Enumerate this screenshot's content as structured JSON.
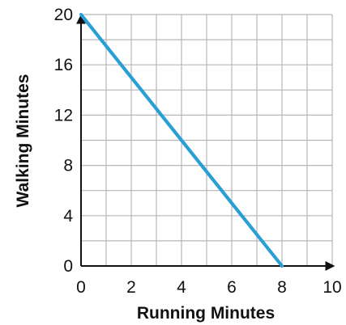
{
  "chart_data": {
    "type": "line",
    "xlabel": "Running Minutes",
    "ylabel": "Walking Minutes",
    "xlim": [
      0,
      10
    ],
    "ylim": [
      0,
      20
    ],
    "grid": true,
    "x_ticks": [
      "0",
      "2",
      "4",
      "6",
      "8",
      "10"
    ],
    "y_ticks": [
      "0",
      "4",
      "8",
      "12",
      "16",
      "20"
    ],
    "series": [
      {
        "x": [
          0,
          8
        ],
        "y": [
          20,
          0
        ]
      }
    ],
    "colors": {
      "line": "#2a9fd6",
      "grid": "#b7b7b7",
      "axis": "#111111"
    }
  }
}
